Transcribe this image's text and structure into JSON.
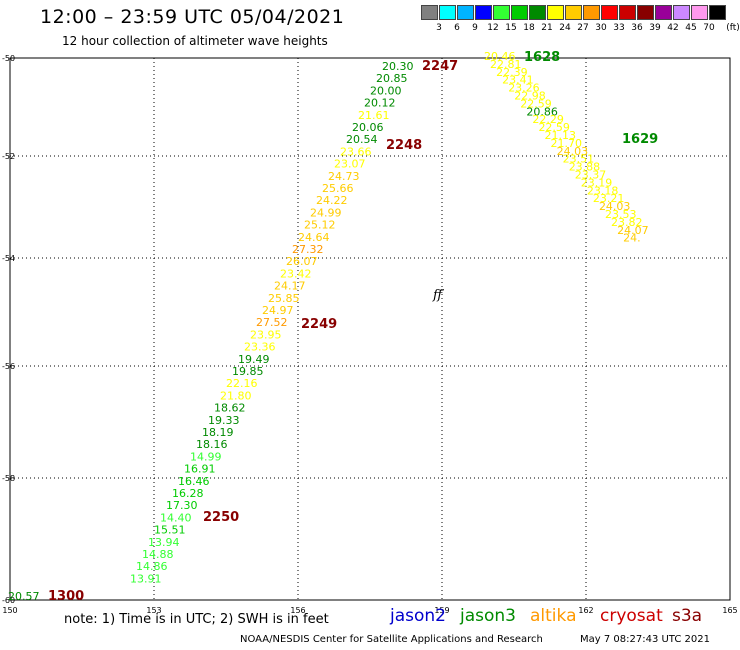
{
  "header": {
    "title": "12:00 – 23:59 UTC 05/04/2021",
    "subtitle": "12 hour collection of altimeter wave heights"
  },
  "legend": {
    "bins": [
      {
        "label": "",
        "color": "#808080"
      },
      {
        "label": "3",
        "color": "#00ffff"
      },
      {
        "label": "6",
        "color": "#00b4ff"
      },
      {
        "label": "9",
        "color": "#0000ff"
      },
      {
        "label": "12",
        "color": "#33ff33"
      },
      {
        "label": "15",
        "color": "#00cc00"
      },
      {
        "label": "18",
        "color": "#008a00"
      },
      {
        "label": "21",
        "color": "#ffff00"
      },
      {
        "label": "24",
        "color": "#ffcc00"
      },
      {
        "label": "27",
        "color": "#ff9900"
      },
      {
        "label": "30",
        "color": "#ff0000"
      },
      {
        "label": "33",
        "color": "#cc0000"
      },
      {
        "label": "36",
        "color": "#880000"
      },
      {
        "label": "39",
        "color": "#990099"
      },
      {
        "label": "42",
        "color": "#cc88ff"
      },
      {
        "label": "45",
        "color": "#ff99ee"
      },
      {
        "label": "70",
        "color": "#000000"
      }
    ],
    "unit": "(ft)"
  },
  "axes": {
    "lon_labels": [
      "150",
      "153",
      "156",
      "159",
      "162",
      "165"
    ],
    "lat_labels": [
      "-50",
      "-52",
      "-54",
      "-56",
      "-58",
      "-60"
    ]
  },
  "tracks": [
    {
      "id": "track-west",
      "points": [
        {
          "v": "20.30",
          "c": "#008a00"
        },
        {
          "v": "20.85",
          "c": "#008a00"
        },
        {
          "v": "20.00",
          "c": "#008a00"
        },
        {
          "v": "20.12",
          "c": "#008a00"
        },
        {
          "v": "21.61",
          "c": "#ffff00"
        },
        {
          "v": "20.06",
          "c": "#008a00"
        },
        {
          "v": "20.54",
          "c": "#008a00"
        },
        {
          "v": "23.66",
          "c": "#ffff00"
        },
        {
          "v": "23.07",
          "c": "#ffff00"
        },
        {
          "v": "24.73",
          "c": "#ffcc00"
        },
        {
          "v": "25.66",
          "c": "#ffcc00"
        },
        {
          "v": "24.22",
          "c": "#ffcc00"
        },
        {
          "v": "24.99",
          "c": "#ffcc00"
        },
        {
          "v": "25.12",
          "c": "#ffcc00"
        },
        {
          "v": "24.64",
          "c": "#ffcc00"
        },
        {
          "v": "27.32",
          "c": "#ff9900"
        },
        {
          "v": "26.07",
          "c": "#ffcc00"
        },
        {
          "v": "23.42",
          "c": "#ffff00"
        },
        {
          "v": "24.17",
          "c": "#ffcc00"
        },
        {
          "v": "25.85",
          "c": "#ffcc00"
        },
        {
          "v": "24.97",
          "c": "#ffcc00"
        },
        {
          "v": "27.52",
          "c": "#ff9900"
        },
        {
          "v": "23.95",
          "c": "#ffff00"
        },
        {
          "v": "23.36",
          "c": "#ffff00"
        },
        {
          "v": "19.49",
          "c": "#008a00"
        },
        {
          "v": "19.85",
          "c": "#008a00"
        },
        {
          "v": "22.16",
          "c": "#ffff00"
        },
        {
          "v": "21.80",
          "c": "#ffff00"
        },
        {
          "v": "18.62",
          "c": "#008a00"
        },
        {
          "v": "19.33",
          "c": "#008a00"
        },
        {
          "v": "18.19",
          "c": "#008a00"
        },
        {
          "v": "18.16",
          "c": "#008a00"
        },
        {
          "v": "14.99",
          "c": "#33ff33"
        },
        {
          "v": "16.91",
          "c": "#00cc00"
        },
        {
          "v": "16.46",
          "c": "#00cc00"
        },
        {
          "v": "16.28",
          "c": "#00cc00"
        },
        {
          "v": "17.30",
          "c": "#00cc00"
        },
        {
          "v": "14.40",
          "c": "#33ff33"
        },
        {
          "v": "15.51",
          "c": "#00cc00"
        },
        {
          "v": "13.94",
          "c": "#33ff33"
        },
        {
          "v": "14.88",
          "c": "#33ff33"
        },
        {
          "v": "14.86",
          "c": "#33ff33"
        },
        {
          "v": "13.91",
          "c": "#33ff33"
        }
      ]
    },
    {
      "id": "track-east",
      "points": [
        {
          "v": "20.46",
          "c": "#ffff00"
        },
        {
          "v": "22.81",
          "c": "#ffff00"
        },
        {
          "v": "22.39",
          "c": "#ffff00"
        },
        {
          "v": "23.41",
          "c": "#ffff00"
        },
        {
          "v": "23.26",
          "c": "#ffff00"
        },
        {
          "v": "22.98",
          "c": "#ffff00"
        },
        {
          "v": "22.59",
          "c": "#ffff00"
        },
        {
          "v": "20.86",
          "c": "#008a00"
        },
        {
          "v": "22.29",
          "c": "#ffff00"
        },
        {
          "v": "22.59",
          "c": "#ffff00"
        },
        {
          "v": "21.13",
          "c": "#ffff00"
        },
        {
          "v": "21.70",
          "c": "#ffff00"
        },
        {
          "v": "24.03",
          "c": "#ffcc00"
        },
        {
          "v": "23.51",
          "c": "#ffff00"
        },
        {
          "v": "23.88",
          "c": "#ffff00"
        },
        {
          "v": "23.37",
          "c": "#ffff00"
        },
        {
          "v": "23.19",
          "c": "#ffff00"
        },
        {
          "v": "23.18",
          "c": "#ffff00"
        },
        {
          "v": "23.21",
          "c": "#ffff00"
        },
        {
          "v": "24.03",
          "c": "#ffcc00"
        },
        {
          "v": "23.53",
          "c": "#ffff00"
        },
        {
          "v": "23.82",
          "c": "#ffff00"
        },
        {
          "v": "24.07",
          "c": "#ffcc00"
        },
        {
          "v": "24.",
          "c": "#ffcc00"
        }
      ]
    }
  ],
  "time_labels": [
    {
      "text": "2247",
      "c": "#880000"
    },
    {
      "text": "2248",
      "c": "#880000"
    },
    {
      "text": "2249",
      "c": "#880000"
    },
    {
      "text": "2250",
      "c": "#880000"
    },
    {
      "text": "1300",
      "c": "#880000"
    },
    {
      "text": "1628",
      "c": "#008a00"
    },
    {
      "text": "1629",
      "c": "#008a00"
    }
  ],
  "corner_value": {
    "v": "20.57",
    "c": "#008a00"
  },
  "map_feature": "ff",
  "note": "note: 1) Time is in UTC; 2) SWH is in feet",
  "satellites": [
    {
      "name": "jason2",
      "color": "#0000cc"
    },
    {
      "name": "jason3",
      "color": "#008a00"
    },
    {
      "name": "altika",
      "color": "#ff9900"
    },
    {
      "name": "cryosat",
      "color": "#cc0000"
    },
    {
      "name": "s3a",
      "color": "#880000"
    }
  ],
  "footer": {
    "credit": "NOAA/NESDIS Center for Satellite Applications and Research",
    "timestamp": "May  7 08:27:43 UTC 2021"
  }
}
